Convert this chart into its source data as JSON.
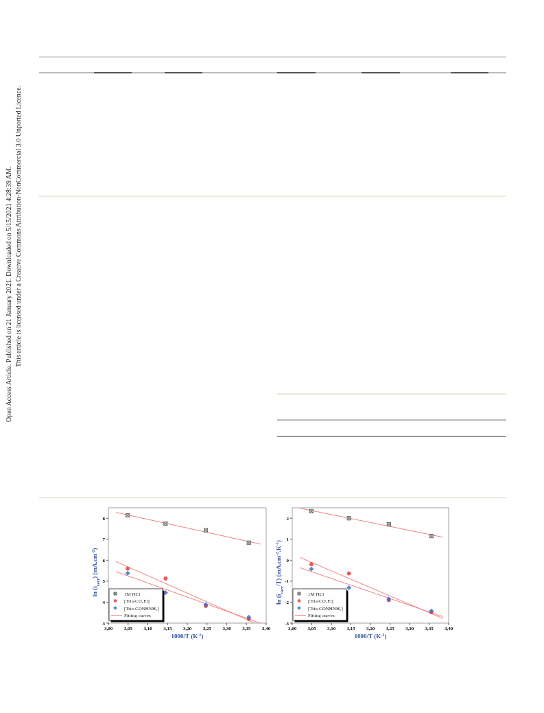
{
  "chart_data": [
    {
      "type": "scatter",
      "xlabel": "1000/T (K$^{-1}$)",
      "ylabel": "ln (i$_{corr}$) (mA.cm$^{-2}$)",
      "xlim": [
        3.0,
        3.4
      ],
      "xticks": [
        {
          "value": 3.0,
          "label": "3,00"
        },
        {
          "value": 3.05,
          "label": "3,05"
        },
        {
          "value": 3.1,
          "label": "3,10"
        },
        {
          "value": 3.15,
          "label": "3,15"
        },
        {
          "value": 3.2,
          "label": "3,20"
        },
        {
          "value": 3.25,
          "label": "3,25"
        },
        {
          "value": 3.3,
          "label": "3,30"
        },
        {
          "value": 3.35,
          "label": "3,35"
        },
        {
          "value": 3.4,
          "label": "3,40"
        }
      ],
      "ylim": [
        3,
        8.5
      ],
      "yticks": [
        3,
        4,
        5,
        6,
        7,
        8
      ],
      "legend": "bottom left",
      "annotations": [
        "Open Access Article. Published on 21 January 2021. Downloaded on 5/15/2021 4:28:39 AM.",
        "This article is licensed under a Creative Commons Attribution-NonCommercial 3.0 Unported Licence."
      ],
      "series": [
        {
          "name": "1M HCl",
          "marker": "square",
          "color": "#555555",
          "x": [
            3.049,
            3.145,
            3.247,
            3.356
          ],
          "values": [
            8.14,
            7.75,
            7.43,
            6.84
          ]
        },
        {
          "name": "[Tria-CO₂Et]",
          "marker": "circle",
          "color": "#e8413c",
          "x": [
            3.049,
            3.145,
            3.247,
            3.356
          ],
          "values": [
            5.6,
            5.13,
            3.82,
            3.2
          ]
        },
        {
          "name": "[Tria-CONHNH₂]",
          "marker": "diamond",
          "color": "#3d6fd1",
          "x": [
            3.049,
            3.145,
            3.247,
            3.356
          ],
          "values": [
            5.38,
            4.45,
            3.88,
            3.28
          ]
        },
        {
          "name": "Fitting curves",
          "type": "line",
          "color": "#f08080",
          "x": [
            3.02,
            3.385
          ],
          "values": [
            8.28,
            6.77
          ]
        },
        {
          "type": "line",
          "color": "#f08080",
          "x": [
            3.02,
            3.37
          ],
          "values": [
            5.93,
            3.01
          ]
        },
        {
          "type": "line",
          "color": "#f08080",
          "x": [
            3.02,
            3.385
          ],
          "values": [
            5.45,
            3.0
          ]
        }
      ]
    },
    {
      "type": "scatter",
      "xlabel": "1000/T (K$^{-1}$)",
      "ylabel": "ln (i$_{corr}$/T) (mA.cm$^{-2}$.K$^{-1}$)",
      "xlim": [
        3.0,
        3.4
      ],
      "xticks": [
        {
          "value": 3.0,
          "label": "3,00"
        },
        {
          "value": 3.05,
          "label": "3,05"
        },
        {
          "value": 3.1,
          "label": "3,10"
        },
        {
          "value": 3.15,
          "label": "3,15"
        },
        {
          "value": 3.2,
          "label": "3,20"
        },
        {
          "value": 3.25,
          "label": "3,25"
        },
        {
          "value": 3.3,
          "label": "3,30"
        },
        {
          "value": 3.35,
          "label": "3,35"
        },
        {
          "value": 3.4,
          "label": "3,40"
        }
      ],
      "ylim": [
        -3,
        2.5
      ],
      "yticks": [
        -3,
        -2,
        -1,
        0,
        1,
        2
      ],
      "legend": "bottom left",
      "series": [
        {
          "name": "1M HCl",
          "marker": "square",
          "color": "#555555",
          "x": [
            3.049,
            3.145,
            3.247,
            3.356
          ],
          "values": [
            2.34,
            2.0,
            1.71,
            1.15
          ]
        },
        {
          "name": "[Tria-CO₂Et]",
          "marker": "circle",
          "color": "#e8413c",
          "x": [
            3.049,
            3.145,
            3.247,
            3.356
          ],
          "values": [
            -0.19,
            -0.63,
            -1.9,
            -2.48
          ]
        },
        {
          "name": "[Tria-CONHNH₂]",
          "marker": "diamond",
          "color": "#3d6fd1",
          "x": [
            3.049,
            3.145,
            3.247,
            3.356
          ],
          "values": [
            -0.42,
            -1.31,
            -1.85,
            -2.42
          ]
        },
        {
          "name": "Fitting curves",
          "type": "line",
          "color": "#f08080",
          "x": [
            3.02,
            3.385
          ],
          "values": [
            2.48,
            1.1
          ]
        },
        {
          "type": "line",
          "color": "#f08080",
          "x": [
            3.02,
            3.385
          ],
          "values": [
            0.13,
            -2.78
          ]
        },
        {
          "type": "line",
          "color": "#f08080",
          "x": [
            3.02,
            3.385
          ],
          "values": [
            -0.36,
            -2.69
          ]
        }
      ]
    }
  ]
}
